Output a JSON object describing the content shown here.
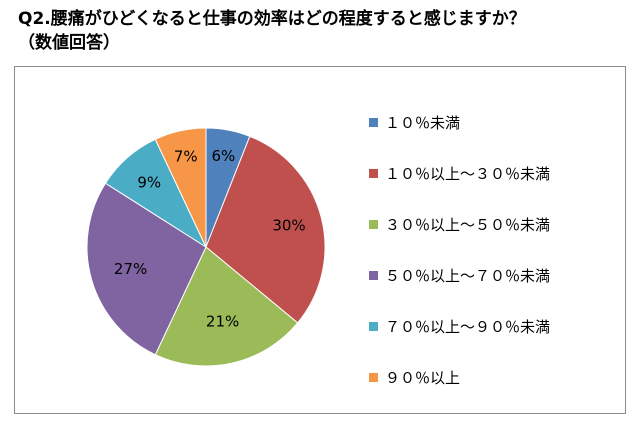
{
  "title_line1": "Q2.腰痛がひどくなると仕事の効率はどの程度すると感じますか？",
  "title_line2": "（数値回答）",
  "chart_data": {
    "type": "pie",
    "categories": [
      "１０％未満",
      "１０％以上～３０％未満",
      "３０％以上～５０％未満",
      "５０％以上～７０％未満",
      "７０％以上～９０％未満",
      "９０％以上"
    ],
    "values": [
      6,
      30,
      21,
      27,
      9,
      7
    ],
    "data_labels": [
      "6%",
      "30%",
      "21%",
      "27%",
      "9%",
      "7%"
    ],
    "colors": [
      "#4F81BD",
      "#C0504D",
      "#9BBB59",
      "#8064A2",
      "#4BACC6",
      "#F79646"
    ],
    "legend_position": "right"
  }
}
